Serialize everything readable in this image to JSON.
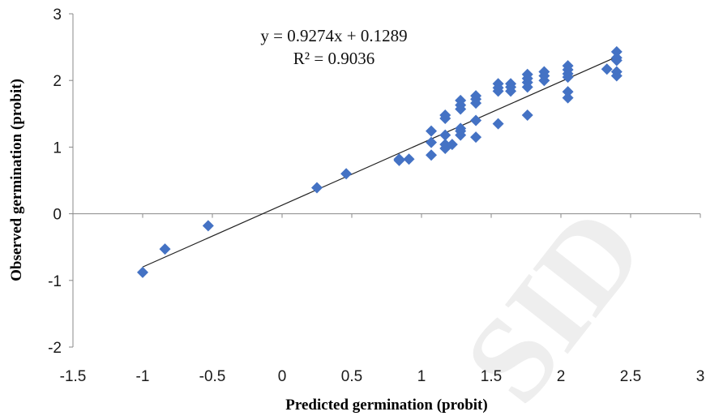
{
  "chart_data": {
    "type": "scatter",
    "xlabel": "Predicted germination (probit)",
    "ylabel": "Observed germination (probit)",
    "xlim": [
      -1.5,
      3
    ],
    "ylim": [
      -2,
      3
    ],
    "x_ticks": [
      "-1.5",
      "-1",
      "-0.5",
      "0",
      "0.5",
      "1",
      "1.5",
      "2",
      "2.5",
      "3"
    ],
    "y_ticks": [
      "-2",
      "-1",
      "0",
      "1",
      "2",
      "3"
    ],
    "equation": "y = 0.9274x + 0.1289",
    "r_squared": "R² = 0.9036",
    "trendline": {
      "slope": 0.9274,
      "intercept": 0.1289,
      "x_range": [
        -1,
        2.4
      ]
    },
    "grid": false,
    "marker_color": "#4472C4",
    "marker_shape": "diamond",
    "watermark": "SID",
    "points": [
      [
        -1.0,
        -0.88
      ],
      [
        -0.84,
        -0.53
      ],
      [
        -0.53,
        -0.18
      ],
      [
        0.25,
        0.39
      ],
      [
        0.46,
        0.6
      ],
      [
        0.84,
        0.8
      ],
      [
        0.84,
        0.82
      ],
      [
        0.91,
        0.82
      ],
      [
        1.07,
        0.88
      ],
      [
        1.07,
        1.07
      ],
      [
        1.07,
        1.24
      ],
      [
        1.17,
        0.98
      ],
      [
        1.17,
        1.04
      ],
      [
        1.17,
        1.18
      ],
      [
        1.17,
        1.43
      ],
      [
        1.17,
        1.48
      ],
      [
        1.22,
        1.04
      ],
      [
        1.28,
        1.18
      ],
      [
        1.28,
        1.24
      ],
      [
        1.28,
        1.28
      ],
      [
        1.28,
        1.57
      ],
      [
        1.28,
        1.63
      ],
      [
        1.28,
        1.7
      ],
      [
        1.39,
        1.15
      ],
      [
        1.39,
        1.4
      ],
      [
        1.39,
        1.66
      ],
      [
        1.39,
        1.72
      ],
      [
        1.39,
        1.77
      ],
      [
        1.55,
        1.35
      ],
      [
        1.55,
        1.84
      ],
      [
        1.55,
        1.89
      ],
      [
        1.55,
        1.95
      ],
      [
        1.64,
        1.84
      ],
      [
        1.64,
        1.9
      ],
      [
        1.64,
        1.95
      ],
      [
        1.76,
        1.48
      ],
      [
        1.76,
        1.9
      ],
      [
        1.76,
        1.97
      ],
      [
        1.76,
        2.03
      ],
      [
        1.76,
        2.09
      ],
      [
        1.88,
        2.0
      ],
      [
        1.88,
        2.07
      ],
      [
        1.88,
        2.13
      ],
      [
        2.05,
        1.74
      ],
      [
        2.05,
        1.83
      ],
      [
        2.05,
        2.05
      ],
      [
        2.05,
        2.1
      ],
      [
        2.05,
        2.16
      ],
      [
        2.05,
        2.22
      ],
      [
        2.33,
        2.17
      ],
      [
        2.4,
        2.07
      ],
      [
        2.4,
        2.13
      ],
      [
        2.4,
        2.3
      ],
      [
        2.4,
        2.34
      ],
      [
        2.4,
        2.43
      ]
    ]
  }
}
